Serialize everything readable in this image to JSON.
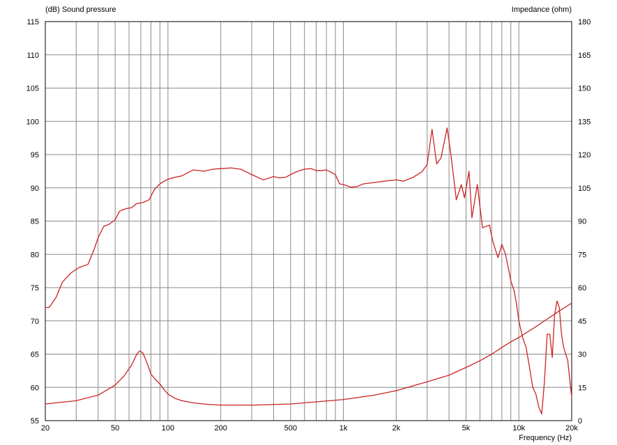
{
  "chart_data": {
    "type": "line",
    "title": "",
    "y_left_label": "(dB)  Sound pressure",
    "y_right_label": "Impedance  (ohm)",
    "xlabel": "Frequency  (Hz)",
    "x_scale": "log",
    "xlim": [
      20,
      20000
    ],
    "ylim_left": [
      55,
      115
    ],
    "ylim_right": [
      0,
      180
    ],
    "grid": true,
    "legend": "none",
    "x_ticks": [
      {
        "value": 20,
        "label": "20"
      },
      {
        "value": 50,
        "label": "50"
      },
      {
        "value": 100,
        "label": "100"
      },
      {
        "value": 200,
        "label": "200"
      },
      {
        "value": 500,
        "label": "500"
      },
      {
        "value": 1000,
        "label": "1k"
      },
      {
        "value": 2000,
        "label": "2k"
      },
      {
        "value": 5000,
        "label": "5k"
      },
      {
        "value": 10000,
        "label": "10k"
      },
      {
        "value": 20000,
        "label": "20k"
      }
    ],
    "y_left_ticks": [
      "55",
      "60",
      "65",
      "70",
      "75",
      "80",
      "85",
      "90",
      "95",
      "100",
      "105",
      "110",
      "115"
    ],
    "y_right_ticks": [
      "0",
      "15",
      "30",
      "45",
      "60",
      "75",
      "90",
      "105",
      "120",
      "135",
      "150",
      "165",
      "180"
    ],
    "series": [
      {
        "axis": "left",
        "x": [
          20,
          21,
          23,
          25,
          28,
          31,
          35,
          38,
          40,
          43,
          46,
          50,
          53,
          58,
          62,
          66,
          72,
          78,
          84,
          90,
          95,
          100,
          110,
          120,
          130,
          140,
          160,
          180,
          200,
          230,
          260,
          300,
          350,
          400,
          430,
          470,
          500,
          550,
          600,
          650,
          700,
          750,
          800,
          900,
          950,
          1000,
          1100,
          1200,
          1300,
          1500,
          1700,
          2000,
          2200,
          2500,
          2800,
          3000,
          3200,
          3400,
          3600,
          3900,
          4100,
          4400,
          4700,
          4900,
          5200,
          5400,
          5800,
          6200,
          6800,
          7100,
          7600,
          8000,
          8400,
          8700,
          9000,
          9400,
          9700,
          10000,
          10500,
          11000,
          11500,
          12000,
          12500,
          13000,
          13500,
          14000,
          14500,
          15000,
          15500,
          16000,
          16500,
          17000,
          17500,
          18000,
          19000,
          20000
        ],
        "y": [
          72.0,
          72.0,
          73.5,
          75.8,
          77.2,
          78.0,
          78.5,
          80.8,
          82.5,
          84.2,
          84.5,
          85.2,
          86.5,
          86.9,
          87.0,
          87.6,
          87.8,
          88.2,
          89.8,
          90.6,
          91.0,
          91.3,
          91.6,
          91.8,
          92.3,
          92.7,
          92.5,
          92.8,
          92.9,
          93.0,
          92.8,
          92.0,
          91.2,
          91.7,
          91.5,
          91.6,
          92.0,
          92.5,
          92.8,
          92.9,
          92.6,
          92.6,
          92.7,
          92.0,
          90.6,
          90.5,
          90.1,
          90.2,
          90.6,
          90.8,
          91.0,
          91.2,
          91.0,
          91.6,
          92.4,
          93.5,
          98.8,
          93.6,
          94.5,
          99.0,
          95.0,
          88.2,
          90.5,
          88.5,
          92.5,
          85.5,
          90.5,
          84.0,
          84.4,
          82.0,
          79.5,
          81.5,
          80.0,
          78.0,
          76.0,
          74.5,
          72.5,
          70.0,
          67.5,
          66.0,
          63.0,
          60.0,
          59.0,
          57.0,
          56.0,
          61.0,
          68.0,
          68.0,
          64.5,
          71.0,
          73.0,
          72.0,
          68.0,
          66.0,
          64.0,
          58.5
        ]
      },
      {
        "axis": "right",
        "x": [
          20,
          30,
          40,
          50,
          56,
          62,
          66,
          69,
          72,
          76,
          80,
          85,
          90,
          95,
          100,
          110,
          120,
          140,
          160,
          200,
          300,
          500,
          1000,
          1500,
          2000,
          3000,
          4000,
          5000,
          6000,
          7000,
          8000,
          9000,
          10000,
          12000,
          14000,
          17000,
          20000
        ],
        "y": [
          7.5,
          9.0,
          11.5,
          16.0,
          20.0,
          25.0,
          29.5,
          31.5,
          30.5,
          26.0,
          21.0,
          18.5,
          16.5,
          14.0,
          12.0,
          10.0,
          9.0,
          8.0,
          7.5,
          7.0,
          7.0,
          7.5,
          9.5,
          11.5,
          13.5,
          17.5,
          20.5,
          24.0,
          27.0,
          30.0,
          33.0,
          35.5,
          37.5,
          41.5,
          45.0,
          49.5,
          53.0
        ]
      }
    ]
  }
}
